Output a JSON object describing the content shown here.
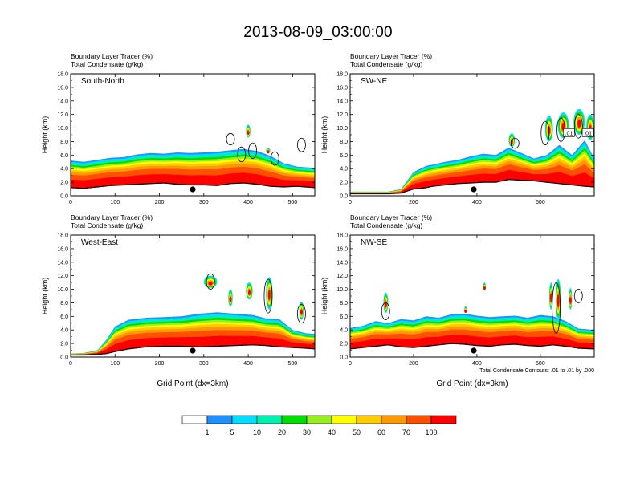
{
  "figure": {
    "title": "2013-08-09_03:00:00",
    "footnote": "Total Condensate Contours: .01 to .01 by .000"
  },
  "chart_data": [
    {
      "type": "area",
      "name": "panel-south-north",
      "subtitle_1": "Boundary Layer Tracer   (%)",
      "subtitle_2": "Total Condensate   (g/kg)",
      "label": "South-North",
      "xlabel": "",
      "ylabel": "Height (km)",
      "xlim": [
        0,
        550
      ],
      "ylim": [
        0,
        18
      ],
      "xticks": [
        0,
        100,
        200,
        300,
        400,
        500
      ],
      "yticks": [
        "0.0",
        "2.0",
        "4.0",
        "6.0",
        "8.0",
        "10.0",
        "12.0",
        "14.0",
        "16.0",
        "18.0"
      ],
      "marker_x": 275,
      "profile_x": [
        0,
        30,
        60,
        90,
        120,
        150,
        180,
        210,
        240,
        270,
        300,
        330,
        360,
        390,
        420,
        450,
        480,
        510,
        550
      ],
      "terrain": [
        1.2,
        1.1,
        1.3,
        1.5,
        1.6,
        1.7,
        1.8,
        1.9,
        1.7,
        1.6,
        1.6,
        1.5,
        1.8,
        1.9,
        1.7,
        1.4,
        1.3,
        1.4,
        1.2
      ],
      "pbl_top": [
        5.2,
        5.0,
        5.3,
        5.6,
        5.7,
        6.1,
        6.3,
        6.2,
        6.4,
        6.3,
        6.4,
        6.5,
        6.7,
        6.9,
        6.6,
        5.9,
        4.8,
        4.3,
        4.1
      ],
      "plumes": [
        [
          395,
          405,
          8.6,
          10.5
        ],
        [
          440,
          450,
          6.4,
          7.0
        ]
      ],
      "contours": [
        [
          360,
          7.5,
          9.2
        ],
        [
          385,
          5.0,
          7.2
        ],
        [
          410,
          5.5,
          7.8
        ],
        [
          460,
          4.5,
          6.5
        ],
        [
          520,
          6.5,
          8.5
        ]
      ]
    },
    {
      "type": "area",
      "name": "panel-sw-ne",
      "subtitle_1": "Boundary Layer Tracer   (%)",
      "subtitle_2": "Total Condensate   (g/kg)",
      "label": "SW-NE",
      "xlabel": "",
      "ylabel": "Height (km)",
      "xlim": [
        0,
        770
      ],
      "ylim": [
        0,
        18
      ],
      "xticks": [
        0,
        200,
        400,
        600
      ],
      "yticks": [
        "0.0",
        "2.0",
        "4.0",
        "6.0",
        "8.0",
        "10.0",
        "12.0",
        "14.0",
        "16.0",
        "18.0"
      ],
      "marker_x": 390,
      "profile_x": [
        0,
        40,
        80,
        120,
        160,
        200,
        240,
        260,
        300,
        340,
        380,
        420,
        460,
        500,
        540,
        580,
        620,
        660,
        700,
        740,
        770
      ],
      "terrain": [
        0.3,
        0.3,
        0.3,
        0.3,
        0.4,
        1.0,
        1.2,
        1.4,
        1.6,
        1.8,
        1.9,
        2.0,
        2.0,
        2.4,
        2.3,
        2.2,
        2.0,
        1.8,
        1.6,
        1.4,
        1.3
      ],
      "pbl_top": [
        0.6,
        0.6,
        0.6,
        0.6,
        1.0,
        3.5,
        4.4,
        4.6,
        5.0,
        5.3,
        5.8,
        6.2,
        6.0,
        7.1,
        6.3,
        5.5,
        6.0,
        7.5,
        6.0,
        8.2,
        5.5
      ],
      "plumes": [
        [
          500,
          520,
          7.2,
          9.2
        ],
        [
          615,
          640,
          8.0,
          11.8
        ],
        [
          655,
          690,
          8.5,
          12.3
        ],
        [
          705,
          740,
          9.0,
          12.8
        ],
        [
          745,
          770,
          8.2,
          12.0
        ]
      ],
      "contours": [
        [
          520,
          7.0,
          8.5
        ],
        [
          615,
          7.5,
          11.0
        ],
        [
          665,
          8.0,
          11.5
        ],
        [
          720,
          8.5,
          12.0
        ]
      ],
      "contour_labels": [
        ".01",
        ".01"
      ]
    },
    {
      "type": "area",
      "name": "panel-west-east",
      "subtitle_1": "Boundary Layer Tracer   (%)",
      "subtitle_2": "Total Condensate   (g/kg)",
      "label": "West-East",
      "xlabel": "Grid Point (dx=3km)",
      "ylabel": "Height (km)",
      "xlim": [
        0,
        550
      ],
      "ylim": [
        0,
        18
      ],
      "xticks": [
        0,
        100,
        200,
        300,
        400,
        500
      ],
      "yticks": [
        "0.0",
        "2.0",
        "4.0",
        "6.0",
        "8.0",
        "10.0",
        "12.0",
        "14.0",
        "16.0",
        "18.0"
      ],
      "marker_x": 275,
      "profile_x": [
        0,
        30,
        60,
        80,
        100,
        130,
        170,
        210,
        250,
        290,
        330,
        370,
        410,
        440,
        470,
        500,
        530,
        550
      ],
      "terrain": [
        0.3,
        0.3,
        0.4,
        0.5,
        0.8,
        1.2,
        1.5,
        1.6,
        1.6,
        1.5,
        1.6,
        1.7,
        1.8,
        1.7,
        1.5,
        1.4,
        1.3,
        1.2
      ],
      "pbl_top": [
        0.5,
        0.6,
        1.0,
        2.5,
        4.5,
        5.5,
        5.8,
        5.9,
        6.0,
        6.4,
        6.6,
        6.4,
        6.2,
        5.7,
        5.6,
        4.0,
        3.5,
        3.4
      ],
      "plumes": [
        [
          300,
          330,
          10.2,
          12.0
        ],
        [
          355,
          365,
          7.5,
          10.0
        ],
        [
          395,
          410,
          8.5,
          11.0
        ],
        [
          440,
          455,
          7.0,
          11.8
        ],
        [
          515,
          525,
          5.5,
          8.2
        ]
      ],
      "contours": [
        [
          315,
          10.0,
          12.3
        ],
        [
          445,
          6.5,
          11.5
        ],
        [
          520,
          5.0,
          7.8
        ]
      ]
    },
    {
      "type": "area",
      "name": "panel-nw-se",
      "subtitle_1": "Boundary Layer Tracer   (%)",
      "subtitle_2": "Total Condensate   (g/kg)",
      "label": "NW-SE",
      "xlabel": "Grid Point (dx=3km)",
      "ylabel": "Height (km)",
      "xlim": [
        0,
        770
      ],
      "ylim": [
        0,
        18
      ],
      "xticks": [
        0,
        200,
        400,
        600
      ],
      "yticks": [
        "0.0",
        "2.0",
        "4.0",
        "6.0",
        "8.0",
        "10.0",
        "12.0",
        "14.0",
        "16.0",
        "18.0"
      ],
      "marker_x": 390,
      "profile_x": [
        0,
        40,
        80,
        120,
        160,
        200,
        240,
        280,
        320,
        360,
        400,
        440,
        480,
        520,
        560,
        600,
        640,
        680,
        720,
        770
      ],
      "terrain": [
        1.2,
        1.4,
        1.6,
        1.8,
        1.5,
        1.4,
        1.6,
        1.8,
        2.0,
        1.9,
        1.7,
        1.6,
        1.8,
        1.9,
        1.7,
        1.6,
        1.8,
        1.6,
        1.3,
        1.2
      ],
      "pbl_top": [
        4.3,
        4.6,
        5.3,
        5.0,
        5.6,
        5.4,
        6.0,
        5.8,
        6.3,
        6.4,
        6.1,
        5.9,
        6.0,
        6.1,
        5.8,
        6.2,
        6.0,
        5.3,
        4.2,
        4.0
      ],
      "plumes": [
        [
          105,
          120,
          6.5,
          9.5
        ],
        [
          360,
          368,
          6.5,
          7.5
        ],
        [
          420,
          428,
          9.8,
          11.0
        ],
        [
          628,
          640,
          7.0,
          11.0
        ],
        [
          648,
          665,
          5.5,
          11.5
        ],
        [
          690,
          700,
          7.0,
          10.2
        ]
      ],
      "contours": [
        [
          112,
          5.5,
          8.0
        ],
        [
          650,
          3.5,
          11.0
        ],
        [
          720,
          8.0,
          10.0
        ]
      ]
    }
  ],
  "colorbar": {
    "title": "Boundary Layer Tracer (%)",
    "colors": [
      "#ffffff",
      "#1e90ff",
      "#00ddff",
      "#00f0b0",
      "#00dd00",
      "#99ee22",
      "#ffff00",
      "#ffcc00",
      "#ff9900",
      "#ff5000",
      "#ff0000"
    ],
    "labels": [
      "1",
      "5",
      "10",
      "20",
      "30",
      "40",
      "50",
      "60",
      "70",
      "100"
    ]
  }
}
